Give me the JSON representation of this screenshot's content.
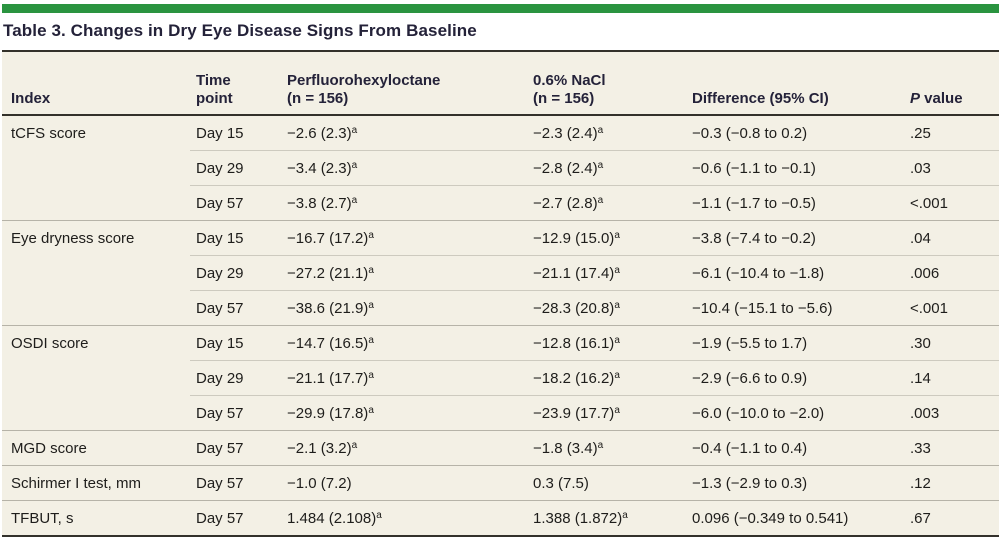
{
  "colors": {
    "accent_green": "#2a9440",
    "table_background": "#f3f0e5",
    "rule_dark": "#33312b",
    "separator_light": "#cdcabf",
    "separator_group": "#b6b3a8"
  },
  "title": "Table 3. Changes in Dry Eye Disease Signs From Baseline",
  "table": {
    "headers": {
      "index": "Index",
      "time_point": "Time\npoint",
      "drug": "Perfluorohexyloctane\n(n = 156)",
      "nacl": "0.6% NaCl\n(n = 156)",
      "difference": "Difference (95% CI)",
      "p_symbol": "P",
      "p_rest": " value"
    },
    "footnote_marker": "a",
    "rows": [
      {
        "index": "tCFS score",
        "group_start": true,
        "time": "Day 15",
        "drug": "−2.6 (2.3)",
        "drug_sup": "a",
        "nacl": "−2.3 (2.4)",
        "nacl_sup": "a",
        "diff": "−0.3 (−0.8 to 0.2)",
        "p": ".25"
      },
      {
        "index": "",
        "group_start": false,
        "time": "Day 29",
        "drug": "−3.4 (2.3)",
        "drug_sup": "a",
        "nacl": "−2.8 (2.4)",
        "nacl_sup": "a",
        "diff": "−0.6 (−1.1 to −0.1)",
        "p": ".03"
      },
      {
        "index": "",
        "group_start": false,
        "time": "Day 57",
        "drug": "−3.8 (2.7)",
        "drug_sup": "a",
        "nacl": "−2.7 (2.8)",
        "nacl_sup": "a",
        "diff": "−1.1 (−1.7 to −0.5)",
        "p": "<.001"
      },
      {
        "index": "Eye dryness score",
        "group_start": true,
        "time": "Day 15",
        "drug": "−16.7 (17.2)",
        "drug_sup": "a",
        "nacl": "−12.9 (15.0)",
        "nacl_sup": "a",
        "diff": "−3.8 (−7.4 to −0.2)",
        "p": ".04"
      },
      {
        "index": "",
        "group_start": false,
        "time": "Day 29",
        "drug": "−27.2 (21.1)",
        "drug_sup": "a",
        "nacl": "−21.1 (17.4)",
        "nacl_sup": "a",
        "diff": "−6.1 (−10.4 to −1.8)",
        "p": ".006"
      },
      {
        "index": "",
        "group_start": false,
        "time": "Day 57",
        "drug": "−38.6 (21.9)",
        "drug_sup": "a",
        "nacl": "−28.3 (20.8)",
        "nacl_sup": "a",
        "diff": "−10.4 (−15.1 to −5.6)",
        "p": "<.001"
      },
      {
        "index": "OSDI score",
        "group_start": true,
        "time": "Day 15",
        "drug": "−14.7 (16.5)",
        "drug_sup": "a",
        "nacl": "−12.8 (16.1)",
        "nacl_sup": "a",
        "diff": "−1.9 (−5.5 to 1.7)",
        "p": ".30"
      },
      {
        "index": "",
        "group_start": false,
        "time": "Day 29",
        "drug": "−21.1 (17.7)",
        "drug_sup": "a",
        "nacl": "−18.2 (16.2)",
        "nacl_sup": "a",
        "diff": "−2.9 (−6.6 to 0.9)",
        "p": ".14"
      },
      {
        "index": "",
        "group_start": false,
        "time": "Day 57",
        "drug": "−29.9 (17.8)",
        "drug_sup": "a",
        "nacl": "−23.9 (17.7)",
        "nacl_sup": "a",
        "diff": "−6.0 (−10.0 to −2.0)",
        "p": ".003"
      },
      {
        "index": "MGD score",
        "group_start": true,
        "time": "Day 57",
        "drug": "−2.1 (3.2)",
        "drug_sup": "a",
        "nacl": "−1.8 (3.4)",
        "nacl_sup": "a",
        "diff": "−0.4 (−1.1 to 0.4)",
        "p": ".33"
      },
      {
        "index": "Schirmer I test, mm",
        "group_start": true,
        "time": "Day 57",
        "drug": "−1.0 (7.2)",
        "drug_sup": "",
        "nacl": "0.3 (7.5)",
        "nacl_sup": "",
        "diff": "−1.3 (−2.9 to 0.3)",
        "p": ".12"
      },
      {
        "index": "TFBUT, s",
        "group_start": true,
        "time": "Day 57",
        "drug": "1.484 (2.108)",
        "drug_sup": "a",
        "nacl": "1.388 (1.872)",
        "nacl_sup": "a",
        "diff": "0.096 (−0.349 to 0.541)",
        "p": ".67"
      }
    ]
  }
}
